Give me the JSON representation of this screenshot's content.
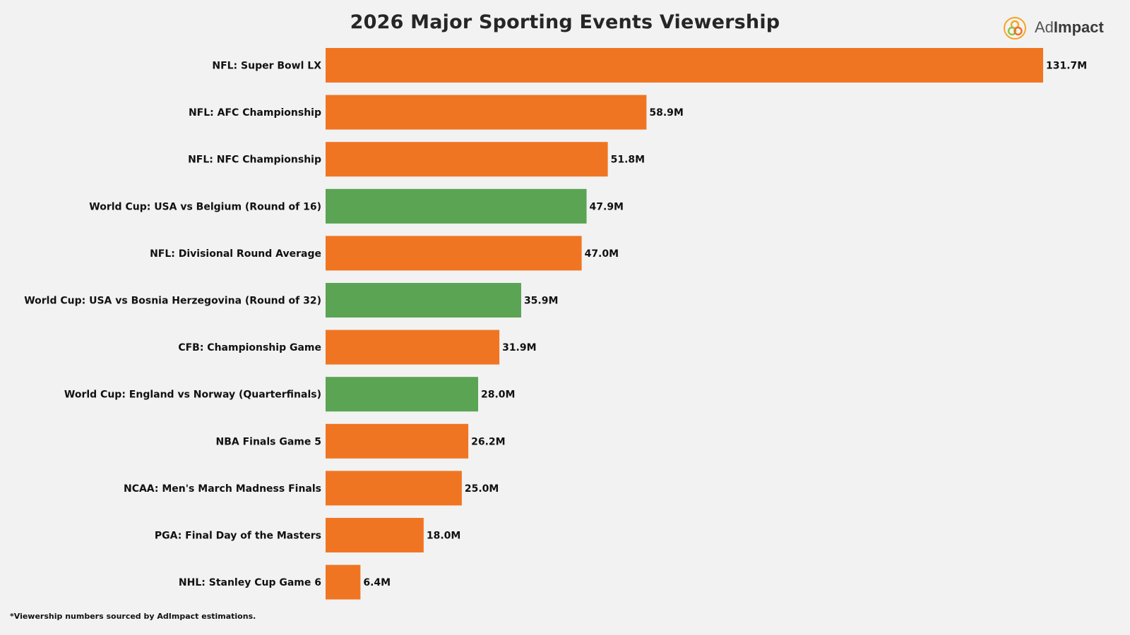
{
  "brand": {
    "name_light": "Ad",
    "name_bold": "Impact",
    "logo_icon": "interlocking-rings-icon",
    "logo_colors": [
      "#f5a623",
      "#8cc63f",
      "#f36f21"
    ]
  },
  "footnote": "*Viewership numbers sourced by AdImpact estimations.",
  "colors": {
    "NFL": "#f07522",
    "World Cup": "#5aa454",
    "other": "#f07522"
  },
  "chart_data": {
    "type": "bar",
    "orientation": "horizontal",
    "title": "2026 Major Sporting Events Viewership",
    "xlabel": "",
    "ylabel": "",
    "xlim": [
      0,
      131.7
    ],
    "grid": false,
    "legend": "none",
    "unit": "M",
    "categories": [
      "NFL: Super Bowl LX",
      "NFL: AFC Championship",
      "NFL: NFC Championship",
      "World Cup: USA vs Belgium (Round of 16)",
      "NFL: Divisional Round Average",
      "World Cup: USA vs Bosnia Herzegovina (Round of 32)",
      "CFB: Championship Game",
      "World Cup: England vs Norway (Quarterfinals)",
      "NBA Finals Game 5",
      "NCAA: Men's March Madness Finals",
      "PGA: Final Day of the Masters",
      "NHL: Stanley Cup Game 6"
    ],
    "values": [
      131.7,
      58.9,
      51.8,
      47.9,
      47.0,
      35.9,
      31.9,
      28.0,
      26.2,
      25.0,
      18.0,
      6.4
    ],
    "value_labels": [
      "131.7M",
      "58.9M",
      "51.8M",
      "47.9M",
      "47.0M",
      "35.9M",
      "31.9M",
      "28.0M",
      "26.2M",
      "25.0M",
      "18.0M",
      "6.4M"
    ],
    "bar_colors": [
      "#f07522",
      "#f07522",
      "#f07522",
      "#5aa454",
      "#f07522",
      "#5aa454",
      "#f07522",
      "#5aa454",
      "#f07522",
      "#f07522",
      "#f07522",
      "#f07522"
    ]
  }
}
